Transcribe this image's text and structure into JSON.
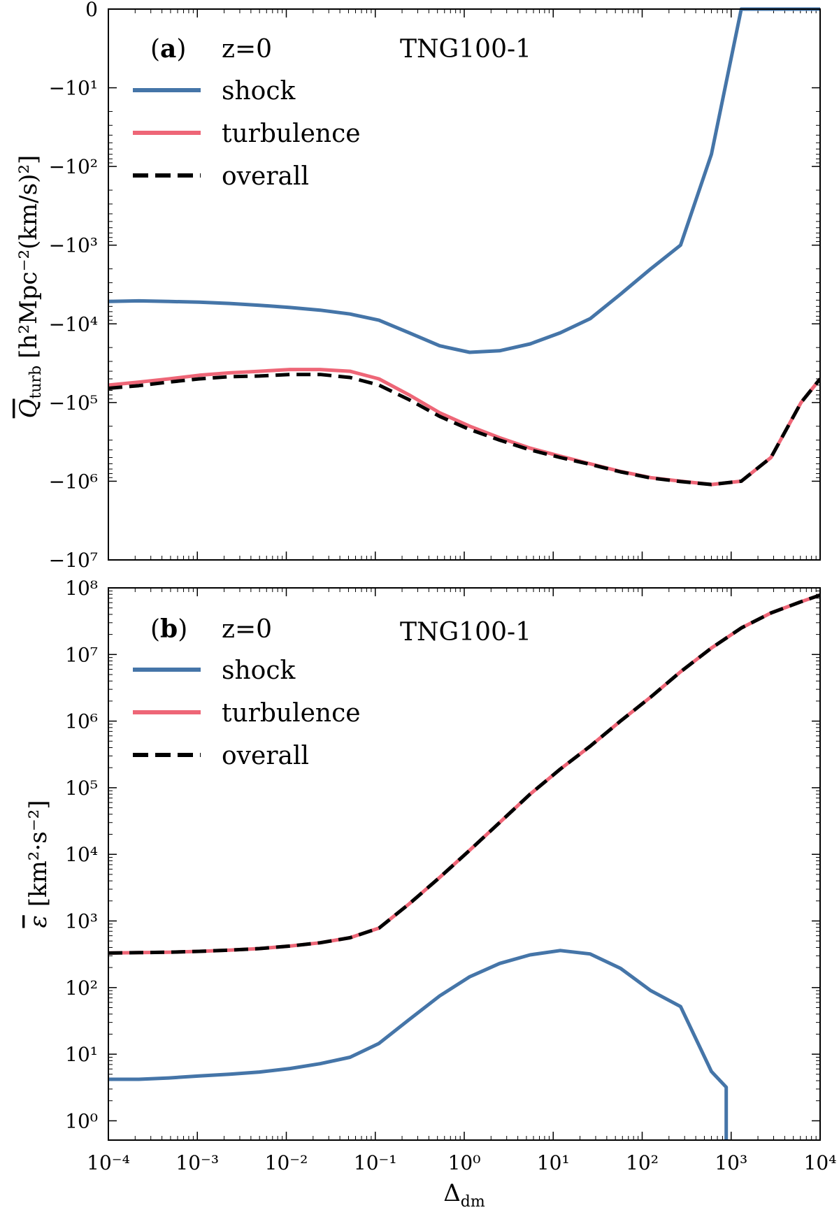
{
  "chart_data": [
    {
      "type": "line",
      "panel_label": "(a)",
      "panel_letter": "a",
      "annotation_left": "z=0",
      "annotation_right": "TNG100-1",
      "ylabel": "Q̄_turb [h²Mpc⁻²(km/s)²]",
      "ylabel_main": "Q",
      "ylabel_sub": "turb",
      "ylabel_units": "[h²Mpc⁻²(km/s)²]",
      "xscale": "log",
      "yscale": "symlog-negative",
      "xlim": [
        0.0001,
        10000
      ],
      "ylim": [
        -10000000,
        0
      ],
      "ytick_labels": [
        "0",
        "−10¹",
        "−10²",
        "−10³",
        "−10⁴",
        "−10⁵",
        "−10⁶",
        "−10⁷"
      ],
      "legend_placement": "top-left",
      "x": [
        0.0001,
        0.00022,
        0.00048,
        0.00105,
        0.0023,
        0.005,
        0.011,
        0.024,
        0.052,
        0.11,
        0.24,
        0.53,
        1.15,
        2.5,
        5.5,
        12,
        26,
        57,
        125,
        270,
        600,
        1300,
        2800,
        6100,
        10000
      ],
      "series": [
        {
          "name": "shock",
          "color": "#4575a8",
          "style": "solid",
          "values": [
            -5200,
            -5100,
            -5200,
            -5300,
            -5500,
            -5800,
            -6200,
            -6700,
            -7500,
            -9000,
            -13000,
            -19000,
            -23000,
            -22000,
            -18000,
            -13000,
            -8600,
            -4200,
            -2000,
            -1000,
            -70,
            0,
            0,
            0,
            0
          ]
        },
        {
          "name": "turbulence",
          "color": "#ee6677",
          "style": "solid",
          "values": [
            -60000,
            -55000,
            -50000,
            -45000,
            -42000,
            -40000,
            -38000,
            -38000,
            -40000,
            -50000,
            -80000,
            -135000,
            -200000,
            -280000,
            -380000,
            -480000,
            -600000,
            -750000,
            -900000,
            -1000000,
            -1100000,
            -1000000,
            -500000,
            -100000,
            -50000
          ]
        },
        {
          "name": "overall",
          "color": "#000000",
          "style": "dashed",
          "values": [
            -66000,
            -61000,
            -55000,
            -50000,
            -47000,
            -46000,
            -44000,
            -44000,
            -48000,
            -60000,
            -92000,
            -150000,
            -220000,
            -300000,
            -400000,
            -500000,
            -610000,
            -760000,
            -910000,
            -1010000,
            -1100000,
            -1000000,
            -500000,
            -100000,
            -50000
          ]
        }
      ]
    },
    {
      "type": "line",
      "panel_label": "(b)",
      "panel_letter": "b",
      "annotation_left": "z=0",
      "annotation_right": "TNG100-1",
      "ylabel": "ε̄ [km²·s⁻²]",
      "ylabel_main": "ε",
      "ylabel_units": "[km²·s⁻²]",
      "xlabel": "Δdm",
      "xlabel_main": "Δ",
      "xlabel_sub": "dm",
      "xscale": "log",
      "yscale": "log",
      "xlim": [
        0.0001,
        10000
      ],
      "ylim": [
        0.5,
        100000000
      ],
      "xtick_labels": [
        "10⁻⁴",
        "10⁻³",
        "10⁻²",
        "10⁻¹",
        "10⁰",
        "10¹",
        "10²",
        "10³",
        "10⁴"
      ],
      "ytick_labels": [
        "10⁰",
        "10¹",
        "10²",
        "10³",
        "10⁴",
        "10⁵",
        "10⁶",
        "10⁷",
        "10⁸"
      ],
      "legend_placement": "top-left",
      "x": [
        0.0001,
        0.00022,
        0.00048,
        0.00105,
        0.0023,
        0.005,
        0.011,
        0.024,
        0.052,
        0.11,
        0.24,
        0.53,
        1.15,
        2.5,
        5.5,
        12,
        26,
        57,
        125,
        270,
        600,
        1300,
        2800,
        6100,
        10000
      ],
      "series": [
        {
          "name": "shock",
          "color": "#4575a8",
          "style": "solid",
          "x": [
            0.0001,
            0.00022,
            0.00048,
            0.00105,
            0.0023,
            0.005,
            0.011,
            0.024,
            0.052,
            0.11,
            0.24,
            0.53,
            1.15,
            2.5,
            5.5,
            12,
            26,
            57,
            125,
            270,
            600,
            880,
            880
          ],
          "values": [
            4.2,
            4.2,
            4.4,
            4.7,
            5.0,
            5.4,
            6.1,
            7.2,
            9.0,
            14.5,
            33,
            75,
            145,
            230,
            310,
            360,
            320,
            195,
            90,
            52,
            5.5,
            3.2,
            0.5
          ]
        },
        {
          "name": "turbulence",
          "color": "#ee6677",
          "style": "solid",
          "values": [
            330,
            335,
            340,
            350,
            365,
            385,
            420,
            470,
            560,
            780,
            1800,
            4500,
            11500,
            30000,
            80000,
            190000,
            420000,
            1000000,
            2300000,
            5500000,
            12500000,
            25000000,
            42000000,
            62000000,
            78000000
          ]
        },
        {
          "name": "overall",
          "color": "#000000",
          "style": "dashed",
          "values": [
            330,
            335,
            340,
            350,
            365,
            385,
            420,
            470,
            560,
            780,
            1800,
            4500,
            11500,
            30000,
            80000,
            190000,
            420000,
            1000000,
            2300000,
            5500000,
            12500000,
            25000000,
            42000000,
            62000000,
            78000000
          ]
        }
      ]
    }
  ]
}
